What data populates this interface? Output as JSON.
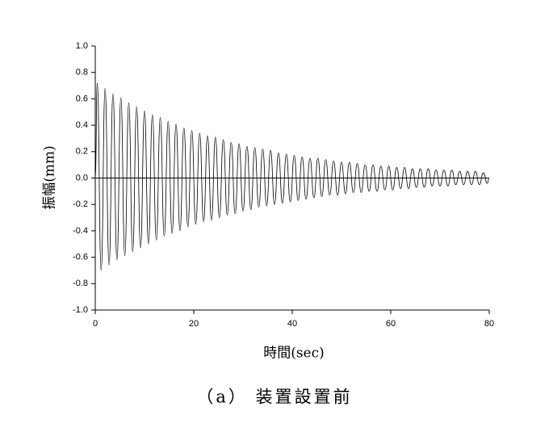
{
  "chart_data": {
    "type": "line",
    "caption": "（a） 装置設置前",
    "x_label": "時間(sec)",
    "y_label": "振幅(mm)",
    "color": "#000000",
    "xlim": [
      0,
      80
    ],
    "xticks": [
      0,
      20,
      40,
      60,
      80
    ],
    "ylim": [
      -1,
      1
    ],
    "yticks": [
      {
        "value": 1,
        "label": "1.0"
      },
      {
        "value": 0.8,
        "label": "0.8"
      },
      {
        "value": 0.6,
        "label": "0.6"
      },
      {
        "value": 0.4,
        "label": "0.4"
      },
      {
        "value": 0.2,
        "label": "0.2"
      },
      {
        "value": 0,
        "label": "0.0"
      },
      {
        "value": -0.2,
        "label": "-0.2"
      },
      {
        "value": -0.4,
        "label": "-0.4"
      },
      {
        "value": -0.6,
        "label": "-0.6"
      },
      {
        "value": -0.8,
        "label": "-0.8"
      },
      {
        "value": -1,
        "label": "-1.0"
      }
    ],
    "x": [
      0,
      0.4,
      1.2,
      2,
      2.8,
      3.6,
      4.4,
      5.2,
      6,
      6.8,
      7.6,
      8.4,
      9.2,
      10,
      10.8,
      11.6,
      12.4,
      13.2,
      14,
      14.8,
      15.6,
      16.4,
      17.2,
      18,
      18.8,
      19.6,
      20.4,
      21.2,
      22,
      22.8,
      23.6,
      24.4,
      25.2,
      26,
      26.8,
      27.6,
      28.4,
      29.2,
      30,
      30.8,
      31.6,
      32.4,
      33.2,
      34,
      34.8,
      35.6,
      36.4,
      37.2,
      38,
      38.8,
      39.6,
      40.4,
      41.2,
      42,
      42.8,
      43.6,
      44.4,
      45.2,
      46,
      46.8,
      47.6,
      48.4,
      49.2,
      50,
      50.8,
      51.6,
      52.4,
      53.2,
      54,
      54.8,
      55.6,
      56.4,
      57.2,
      58,
      58.8,
      59.6,
      60.4,
      61.2,
      62,
      62.8,
      63.6,
      64.4,
      65.2,
      66,
      66.8,
      67.6,
      68.4,
      69.2,
      70,
      70.8,
      71.6,
      72.4,
      73.2,
      74,
      74.8,
      75.6,
      76.4,
      77.2,
      78,
      78.8,
      79.6,
      80
    ],
    "values": [
      0,
      0.72,
      -0.7,
      0.68,
      -0.66,
      0.64,
      -0.62,
      0.61,
      -0.59,
      0.57,
      -0.56,
      0.54,
      -0.53,
      0.51,
      -0.5,
      0.48,
      -0.47,
      0.46,
      -0.44,
      0.43,
      -0.42,
      0.41,
      -0.4,
      0.38,
      -0.37,
      0.36,
      -0.35,
      0.34,
      -0.33,
      0.32,
      -0.32,
      0.31,
      -0.3,
      0.29,
      -0.28,
      0.27,
      -0.27,
      0.26,
      -0.25,
      0.24,
      -0.24,
      0.23,
      -0.22,
      0.22,
      -0.21,
      0.21,
      -0.2,
      0.19,
      -0.19,
      0.18,
      -0.18,
      0.17,
      -0.17,
      0.16,
      -0.16,
      0.15,
      -0.15,
      0.15,
      -0.14,
      0.14,
      -0.13,
      0.13,
      -0.13,
      0.12,
      -0.12,
      0.12,
      -0.11,
      0.11,
      -0.11,
      0.1,
      -0.1,
      0.1,
      -0.1,
      0.09,
      -0.09,
      0.09,
      -0.09,
      0.08,
      -0.08,
      0.08,
      -0.08,
      0.07,
      -0.07,
      0.07,
      -0.07,
      0.07,
      -0.06,
      0.06,
      -0.06,
      0.06,
      -0.06,
      0.06,
      -0.05,
      0.05,
      -0.05,
      0.05,
      -0.05,
      0.05,
      -0.05,
      0.04,
      -0.04,
      0
    ]
  }
}
